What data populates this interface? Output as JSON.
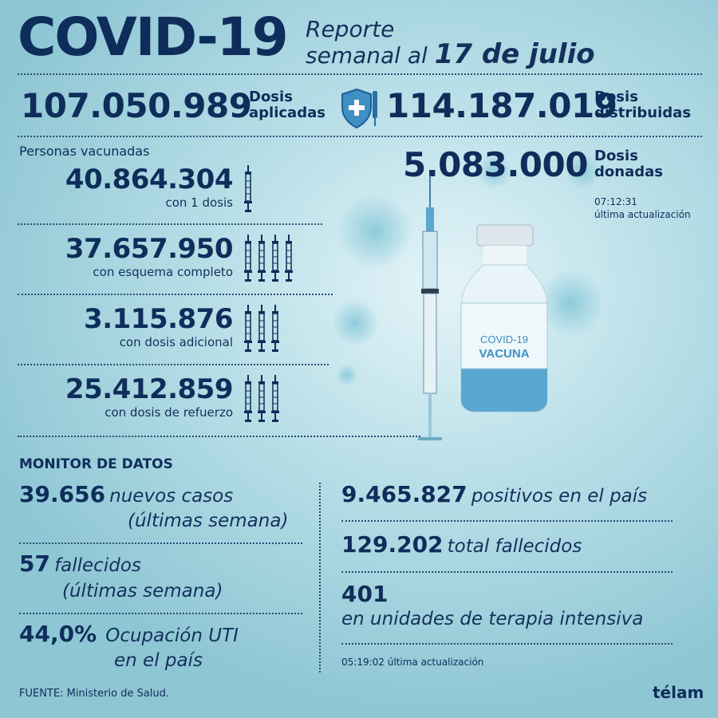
{
  "header": {
    "title": "COVID-19",
    "subtitle_line1": "Reporte",
    "subtitle_line2": "semanal al",
    "subtitle_date": "17 de julio"
  },
  "doses": {
    "applied_value": "107.050.989",
    "applied_label_1": "Dosis",
    "applied_label_2": "aplicadas",
    "distributed_value": "114.187.019",
    "distributed_label_1": "Dosis",
    "distributed_label_2": "distribuidas",
    "donated_value": "5.083.000",
    "donated_label_1": "Dosis",
    "donated_label_2": "donadas",
    "update_time": "07:12:31",
    "update_label": "última actualización"
  },
  "vaccinated": {
    "heading": "Personas vacunadas",
    "items": [
      {
        "value": "40.864.304",
        "label": "con 1 dosis",
        "syringes": 1
      },
      {
        "value": "37.657.950",
        "label": "con esquema completo",
        "syringes": 4
      },
      {
        "value": "3.115.876",
        "label": "con dosis adicional",
        "syringes": 3
      },
      {
        "value": "25.412.859",
        "label": "con dosis de refuerzo",
        "syringes": 3
      }
    ]
  },
  "vial": {
    "line1": "COVID-19",
    "line2": "VACUNA"
  },
  "monitor": {
    "heading": "MONITOR DE DATOS",
    "new_cases_value": "39.656",
    "new_cases_label_1": "nuevos casos",
    "new_cases_label_2": "(últimas semana)",
    "deaths_value": "57",
    "deaths_label_1": "fallecidos",
    "deaths_label_2": "(últimas semana)",
    "icu_value": "44,0%",
    "icu_label_1": "Ocupación UTI",
    "icu_label_2": "en el país",
    "positives_value": "9.465.827",
    "positives_label": "positivos en el país",
    "total_deaths_value": "129.202",
    "total_deaths_label": "total fallecidos",
    "icu_patients_value": "401",
    "icu_patients_label": "en unidades de terapia intensiva",
    "update_time": "05:19:02",
    "update_label": "última actualización"
  },
  "footer": {
    "source": "FUENTE: Ministerio de Salud.",
    "brand": "télam"
  }
}
